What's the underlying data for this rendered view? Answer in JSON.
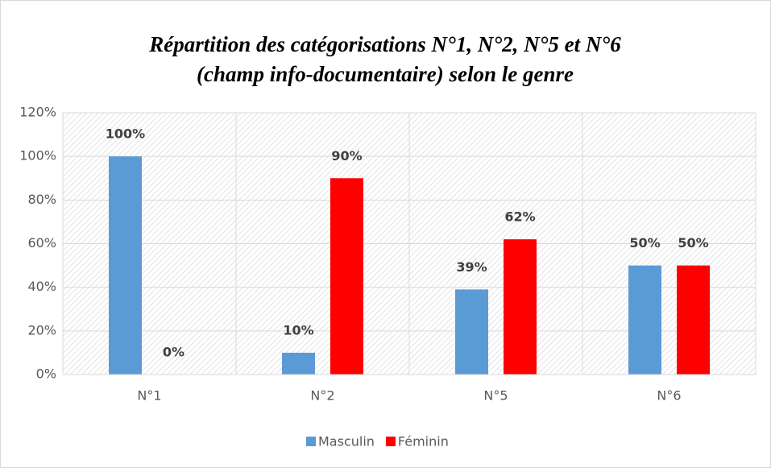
{
  "chart_data": {
    "type": "bar",
    "title": [
      "Répartition des catégorisations N°1, N°2, N°5 et N°6",
      "(champ info-documentaire) selon le genre"
    ],
    "categories": [
      "N°1",
      "N°2",
      "N°5",
      "N°6"
    ],
    "series": [
      {
        "name": "Masculin",
        "color": "#5b9bd5",
        "values": [
          100,
          10,
          39,
          50
        ],
        "value_labels": [
          "100%",
          "10%",
          "39%",
          "50%"
        ]
      },
      {
        "name": "Féminin",
        "color": "#ff0000",
        "values": [
          0,
          90,
          62,
          50
        ],
        "value_labels": [
          "0%",
          "90%",
          "62%",
          "50%"
        ]
      }
    ],
    "ylim": [
      0,
      120
    ],
    "yticks": [
      {
        "value": 0,
        "label": "0%"
      },
      {
        "value": 20,
        "label": "20%"
      },
      {
        "value": 40,
        "label": "40%"
      },
      {
        "value": 60,
        "label": "60%"
      },
      {
        "value": 80,
        "label": "80%"
      },
      {
        "value": 100,
        "label": "100%"
      },
      {
        "value": 120,
        "label": "120%"
      }
    ],
    "grid": true,
    "legend": "bottom"
  }
}
